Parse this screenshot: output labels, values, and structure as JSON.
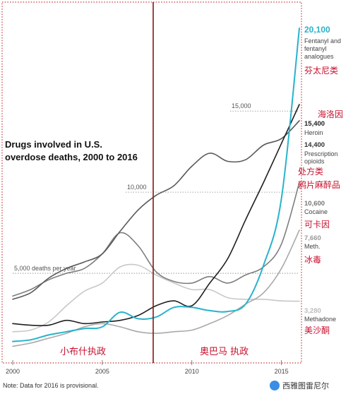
{
  "chart_data": {
    "type": "line",
    "title": "Drugs involved in U.S. overdose deaths, 2000 to 2016",
    "xlabel": "",
    "ylabel": "",
    "xlim": [
      2000,
      2016
    ],
    "ylim": [
      0,
      21000
    ],
    "x_ticks": [
      "2000",
      "2005",
      "2010",
      "2015"
    ],
    "x_tick_values": [
      2000,
      2005,
      2010,
      2015
    ],
    "reference_lines": [
      {
        "value": 5000,
        "label": "5,000 deaths per year"
      },
      {
        "value": 10000,
        "label": "10,000"
      },
      {
        "value": 15000,
        "label": "15,000"
      }
    ],
    "footnote": "Note: Data for 2016 is provisional.",
    "watermark": "西雅图雷尼尔",
    "periods": [
      {
        "label": "小布什执政",
        "start": 2000,
        "end": 2008.6
      },
      {
        "label": "奥巴马 执政",
        "start": 2008.6,
        "end": 2016.6
      }
    ],
    "x": [
      2000,
      2001,
      2002,
      2003,
      2004,
      2005,
      2006,
      2007,
      2008,
      2009,
      2010,
      2011,
      2012,
      2013,
      2014,
      2015,
      2016
    ],
    "series": [
      {
        "name": "Fentanyl and fentanyl analogues",
        "name_cn": "芬太尼类",
        "end_label": "20,100",
        "color": "#27b3cc",
        "width": 2,
        "values": [
          800,
          900,
          1200,
          1400,
          1600,
          1700,
          2600,
          2200,
          2300,
          2900,
          2900,
          2700,
          2650,
          3100,
          5500,
          9600,
          20100
        ]
      },
      {
        "name": "Heroin",
        "name_cn": "海洛因",
        "end_label": "15,400",
        "color": "#1f1f1f",
        "width": 1.6,
        "values": [
          1900,
          1800,
          1800,
          2100,
          1900,
          2000,
          2100,
          2400,
          3000,
          3300,
          3000,
          4400,
          5900,
          8300,
          10600,
          13000,
          15400
        ]
      },
      {
        "name": "Prescription opioids",
        "name_cn": "处方类 鸦片麻醉品",
        "end_label": "14,400",
        "color": "#5a5a5a",
        "width": 1.6,
        "values": [
          3400,
          3800,
          4700,
          5300,
          5700,
          6200,
          7600,
          8900,
          9800,
          10400,
          11600,
          12400,
          11900,
          12000,
          12900,
          13300,
          14400
        ]
      },
      {
        "name": "Cocaine",
        "name_cn": "可卡因",
        "end_label": "10,600",
        "color": "#7e7e7e",
        "width": 1.6,
        "values": [
          3600,
          4000,
          4600,
          5000,
          5300,
          6200,
          7500,
          6700,
          5100,
          4500,
          4400,
          4800,
          4400,
          4900,
          5400,
          6800,
          10600
        ]
      },
      {
        "name": "Meth.",
        "name_cn": "冰毒",
        "end_label": "7,660",
        "color": "#a9a9a9",
        "width": 1.6,
        "values": [
          500,
          700,
          1000,
          1300,
          1700,
          1900,
          1700,
          1400,
          1300,
          1400,
          1500,
          1900,
          2400,
          3100,
          3800,
          5300,
          7660
        ]
      },
      {
        "name": "Methadone",
        "name_cn": "美沙酮",
        "end_label": "3,280",
        "color": "#c8c8c8",
        "width": 1.6,
        "values": [
          1400,
          1500,
          2000,
          3000,
          3900,
          4400,
          5400,
          5500,
          4900,
          4400,
          4000,
          4000,
          3500,
          3400,
          3400,
          3300,
          3280
        ]
      }
    ]
  }
}
